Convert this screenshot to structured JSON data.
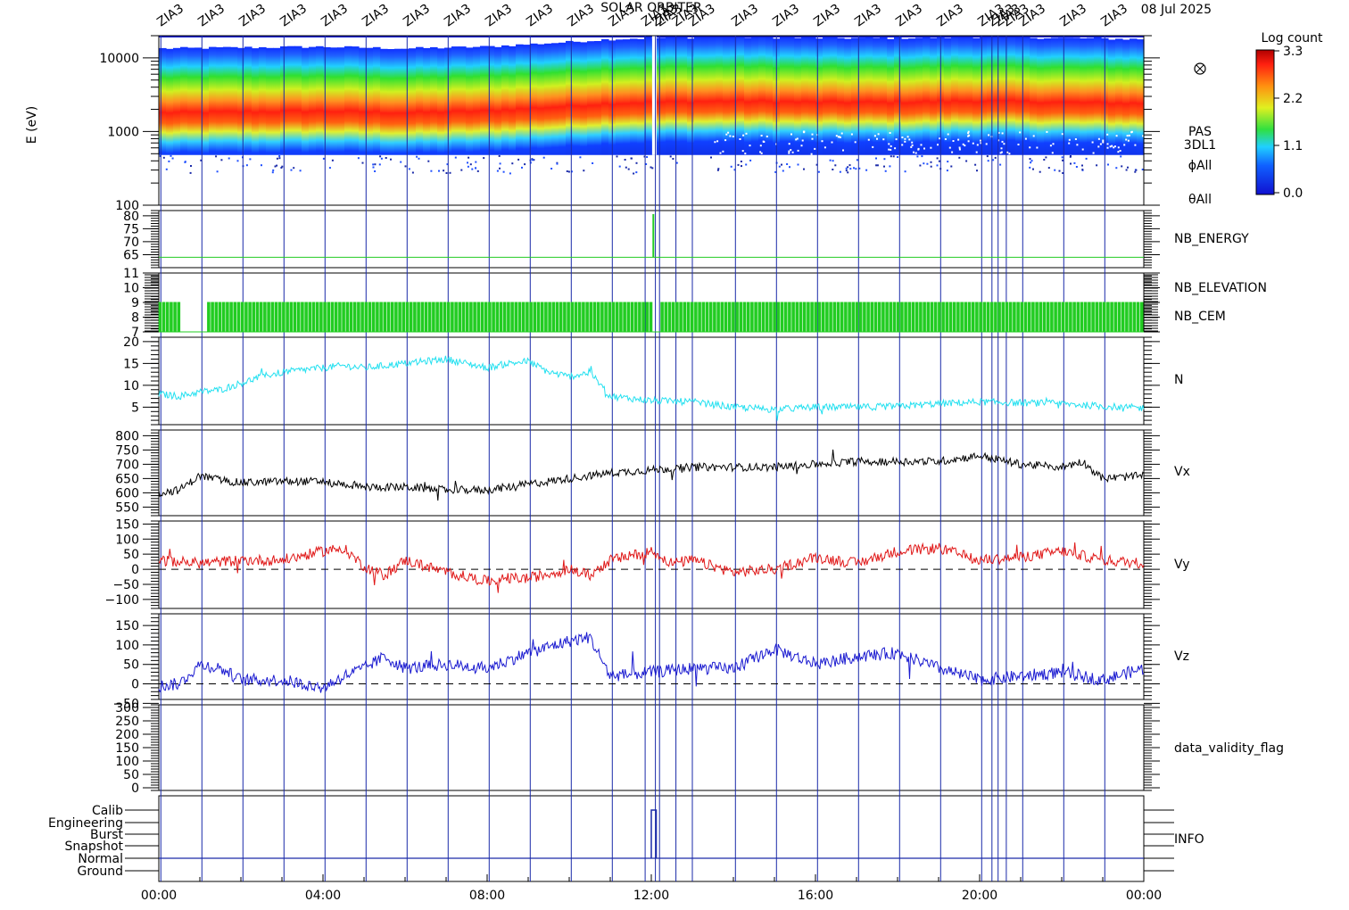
{
  "header": {
    "title": "SOLAR ORBITER",
    "date": "08 Jul 2025"
  },
  "time_axis": {
    "ticks": [
      "00:00",
      "04:00",
      "08:00",
      "12:00",
      "16:00",
      "20:00",
      "00:00"
    ],
    "range_hours": [
      0,
      24
    ]
  },
  "event_marker_label": "ZIA3",
  "colors": {
    "frame": "#000000",
    "event_lines": "#1a2aa8",
    "nb_energy": "#22cc22",
    "nb_elevation": "#22cc22",
    "nb_cem": "#1a2aa8",
    "n": "#22e0f0",
    "vx": "#000000",
    "vy": "#e01818",
    "vz": "#1a1ad0"
  },
  "chart_data": [
    {
      "type": "heatmap",
      "name_label": [
        "PAS",
        "3DL1",
        "ϕAll",
        "θAll"
      ],
      "ylabel": "E (eV)",
      "yscale": "log",
      "ylim": [
        100,
        20000
      ],
      "yticks": [
        "10000",
        "1000",
        "100"
      ],
      "colorbar": {
        "title": "Log count",
        "ticks": [
          "3.3",
          "2.2",
          "1.1",
          "0.0"
        ],
        "range": [
          0.0,
          3.3
        ]
      },
      "peak_energy_profile": {
        "x_hours": [
          0,
          2,
          4,
          6,
          8,
          10,
          11,
          12,
          14,
          16,
          18,
          20,
          22,
          24
        ],
        "peak_eV": [
          1800,
          1850,
          1900,
          1800,
          1900,
          2200,
          2400,
          2500,
          2600,
          2500,
          2500,
          2600,
          2500,
          2400
        ]
      }
    },
    {
      "type": "line",
      "series": [
        {
          "name": "NB_ENERGY",
          "x": [
            0,
            24
          ],
          "values": [
            64,
            64
          ]
        }
      ],
      "ylim": [
        60,
        82
      ],
      "yticks": [
        "80",
        "75",
        "70",
        "65"
      ]
    },
    {
      "type": "line",
      "series": [
        {
          "name": "NB_ELEVATION",
          "x": [
            0,
            24
          ],
          "values": [
            9,
            9
          ]
        },
        {
          "name": "NB_CEM"
        }
      ],
      "ylim": [
        7,
        11
      ],
      "yticks": [
        "11",
        "10",
        "9",
        "8",
        "7"
      ],
      "note_gaps_hours": [
        [
          0.5,
          1.1
        ],
        [
          12.0,
          12.2
        ]
      ]
    },
    {
      "type": "line",
      "series": [
        {
          "name": "N",
          "x": [
            0,
            0.5,
            1,
            1.5,
            2,
            2.5,
            3,
            3.5,
            4,
            4.5,
            5,
            5.5,
            6,
            6.5,
            7,
            7.5,
            8,
            8.5,
            9,
            9.5,
            10,
            10.5,
            11,
            11.5,
            12,
            13,
            14,
            15,
            16,
            17,
            18,
            19,
            20,
            21,
            22,
            23,
            24
          ],
          "values": [
            8,
            7.5,
            8.5,
            9,
            10.5,
            12,
            13,
            13.5,
            14,
            14.5,
            14,
            14.5,
            15,
            15.5,
            16,
            15,
            14,
            15,
            15.5,
            13,
            12,
            13,
            7.5,
            7,
            6.5,
            6.2,
            5,
            4.5,
            5,
            5,
            5.2,
            5.8,
            6.2,
            6,
            5.8,
            5.2,
            4.8
          ]
        }
      ],
      "ylim": [
        1,
        21
      ],
      "yticks": [
        "20",
        "15",
        "10",
        "5"
      ]
    },
    {
      "type": "line",
      "series": [
        {
          "name": "Vx",
          "x": [
            0,
            0.5,
            1,
            1.5,
            2,
            3,
            4,
            5,
            6,
            7,
            8,
            9,
            10,
            11,
            12,
            13,
            14,
            15,
            16,
            17,
            18,
            19,
            20,
            21,
            22,
            22.5,
            23,
            24
          ],
          "values": [
            600,
            610,
            660,
            645,
            635,
            640,
            640,
            620,
            620,
            610,
            610,
            630,
            650,
            670,
            680,
            690,
            690,
            690,
            700,
            710,
            710,
            710,
            730,
            700,
            690,
            710,
            650,
            660
          ]
        }
      ],
      "ylim": [
        520,
        820
      ],
      "yticks": [
        "800",
        "750",
        "700",
        "650",
        "600",
        "550"
      ]
    },
    {
      "type": "line",
      "series": [
        {
          "name": "Vy",
          "x": [
            0,
            1,
            2,
            3,
            4,
            4.5,
            5,
            5.5,
            6,
            7,
            8,
            8.5,
            9,
            10,
            10.5,
            11,
            12,
            12.5,
            13,
            14,
            15,
            16,
            17,
            18,
            19,
            20,
            21,
            22,
            23,
            24
          ],
          "values": [
            30,
            20,
            30,
            30,
            60,
            70,
            10,
            -20,
            30,
            -10,
            -40,
            -30,
            -30,
            0,
            -20,
            30,
            60,
            20,
            30,
            -10,
            0,
            40,
            20,
            60,
            70,
            30,
            40,
            60,
            30,
            20
          ]
        }
      ],
      "ylim": [
        -130,
        160
      ],
      "yticks": [
        "150",
        "100",
        "50",
        "0",
        "−50",
        "−100"
      ],
      "reference_line": 0
    },
    {
      "type": "line",
      "series": [
        {
          "name": "Vz",
          "x": [
            0,
            0.5,
            1,
            1.5,
            2,
            3,
            4,
            4.5,
            5,
            5.5,
            6,
            7,
            8,
            9,
            10,
            10.5,
            11,
            12,
            13,
            14,
            15,
            16,
            17,
            18,
            19,
            20,
            21,
            22,
            23,
            24
          ],
          "values": [
            -5,
            0,
            50,
            40,
            10,
            10,
            -10,
            20,
            40,
            70,
            40,
            50,
            40,
            80,
            110,
            120,
            20,
            30,
            40,
            40,
            90,
            50,
            70,
            80,
            40,
            10,
            20,
            30,
            10,
            40
          ]
        }
      ],
      "ylim": [
        -40,
        180
      ],
      "yticks": [
        "150",
        "100",
        "50",
        "0",
        "−50"
      ],
      "reference_line": 0
    },
    {
      "type": "line",
      "series": [
        {
          "name": "data_validity_flag",
          "x": [],
          "values": []
        }
      ],
      "ylim": [
        -10,
        310
      ],
      "yticks": [
        "300",
        "250",
        "200",
        "150",
        "100",
        "50",
        "0"
      ]
    },
    {
      "type": "line",
      "series": [
        {
          "name": "INFO",
          "x": [
            0,
            12.0,
            12.0,
            12.1,
            12.1,
            24
          ],
          "values": [
            1,
            1,
            5,
            5,
            1,
            1
          ]
        }
      ],
      "yticks": [
        "Calib",
        "Engineering",
        "Burst",
        "Snapshot",
        "Normal",
        "Ground"
      ]
    }
  ]
}
